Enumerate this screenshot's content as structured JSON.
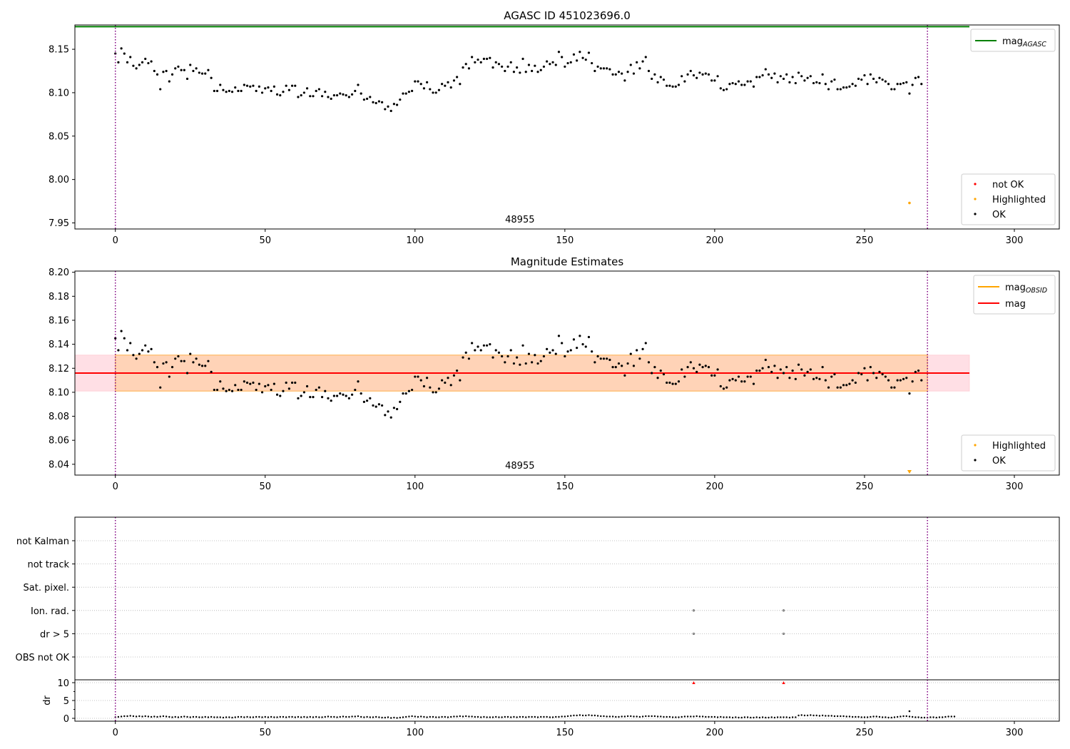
{
  "chart_data": [
    {
      "type": "scatter",
      "title": "AGASC ID 451023696.0",
      "xlim": [
        -13.5,
        315
      ],
      "ylim": [
        7.943,
        8.178
      ],
      "xticks": [
        0,
        50,
        100,
        150,
        200,
        250,
        300
      ],
      "yticks": [
        7.95,
        8.0,
        8.05,
        8.1,
        8.15
      ],
      "ytick_labels": [
        "7.95",
        "8.00",
        "8.05",
        "8.10",
        "8.15"
      ],
      "obsid_label": "48955",
      "obsid_label_x": 135,
      "obsid_bounds": [
        0,
        271
      ],
      "lines": [
        {
          "name": "mag_AGASC",
          "y": 8.176,
          "x_range": [
            -13.5,
            285
          ],
          "color": "#008000"
        }
      ],
      "legend_lines": [
        {
          "label": "mag",
          "sub": "AGASC",
          "color": "#008000"
        }
      ],
      "legend_points": [
        {
          "label": "not OK",
          "color": "#ff0000"
        },
        {
          "label": "Highlighted",
          "color": "#ffa500"
        },
        {
          "label": "OK",
          "color": "#000000"
        }
      ],
      "highlighted": [
        {
          "x": 265,
          "y": 7.973
        }
      ],
      "points_shared": "ok_series"
    },
    {
      "type": "scatter",
      "title": "Magnitude Estimates",
      "xlim": [
        -13.5,
        315
      ],
      "ylim": [
        8.031,
        8.201
      ],
      "xticks": [
        0,
        50,
        100,
        150,
        200,
        250,
        300
      ],
      "yticks": [
        8.04,
        8.06,
        8.08,
        8.1,
        8.12,
        8.14,
        8.16,
        8.18,
        8.2
      ],
      "ytick_labels": [
        "8.04",
        "8.06",
        "8.08",
        "8.10",
        "8.12",
        "8.14",
        "8.16",
        "8.18",
        "8.20"
      ],
      "obsid_label": "48955",
      "obsid_label_x": 135,
      "obsid_bounds": [
        0,
        271
      ],
      "lines": [
        {
          "name": "mag_OBSID",
          "y": 8.116,
          "x_range": [
            0,
            271
          ],
          "color": "#ffa500"
        },
        {
          "name": "mag",
          "y": 8.116,
          "x_range": [
            -13.5,
            285
          ],
          "color": "#ff0000"
        }
      ],
      "bands": [
        {
          "y0": 8.101,
          "y1": 8.131,
          "x_range": [
            -13.5,
            285
          ],
          "color": "#ffc0cb",
          "opacity": 0.5
        },
        {
          "y0": 8.101,
          "y1": 8.131,
          "x_range": [
            0,
            271
          ],
          "color": "#ffa500",
          "opacity": 0.2
        }
      ],
      "legend_lines": [
        {
          "label": "mag",
          "sub": "OBSID",
          "color": "#ffa500"
        },
        {
          "label": "mag",
          "sub": "",
          "color": "#ff0000"
        }
      ],
      "legend_points": [
        {
          "label": "Highlighted",
          "color": "#ffa500"
        },
        {
          "label": "OK",
          "color": "#000000"
        }
      ],
      "highlighted_offscale": [
        {
          "x": 265
        }
      ],
      "points_shared": "ok_series"
    },
    {
      "type": "scatter",
      "title": "",
      "xlim": [
        -13.5,
        315
      ],
      "xticks": [
        0,
        50,
        100,
        150,
        200,
        250,
        300
      ],
      "categories": [
        "not Kalman",
        "not track",
        "Sat. pixel.",
        "Ion. rad.",
        "dr > 5",
        "OBS not OK"
      ],
      "flag_points": [
        {
          "category": "Ion. rad.",
          "x": 193
        },
        {
          "category": "Ion. rad.",
          "x": 223
        },
        {
          "category": "dr > 5",
          "x": 193
        },
        {
          "category": "dr > 5",
          "x": 223
        }
      ],
      "obsid_bounds": [
        0,
        271
      ],
      "dr_panel": {
        "ylabel": "dr",
        "ylim": [
          -0.8,
          10.8
        ],
        "yticks": [
          0,
          5,
          10
        ],
        "ytick_labels": [
          "0",
          "5",
          "10"
        ],
        "offscale_marks": [
          {
            "x": 193
          },
          {
            "x": 223
          }
        ],
        "highlighted": [
          {
            "x": 265,
            "y": 2.0
          }
        ]
      }
    }
  ],
  "ok_series": {
    "x_start": 0,
    "x_step": 1,
    "mag": [
      8.145,
      8.135,
      8.151,
      8.145,
      8.135,
      8.141,
      8.131,
      8.128,
      8.132,
      8.135,
      8.139,
      8.134,
      8.136,
      8.125,
      8.121,
      8.104,
      8.124,
      8.125,
      8.113,
      8.121,
      8.128,
      8.13,
      8.126,
      8.126,
      8.116,
      8.132,
      8.125,
      8.128,
      8.123,
      8.122,
      8.122,
      8.126,
      8.117,
      8.102,
      8.102,
      8.109,
      8.103,
      8.101,
      8.102,
      8.101,
      8.106,
      8.102,
      8.102,
      8.109,
      8.108,
      8.107,
      8.108,
      8.102,
      8.107,
      8.1,
      8.105,
      8.106,
      8.102,
      8.107,
      8.098,
      8.097,
      8.101,
      8.108,
      8.103,
      8.108,
      8.108,
      8.095,
      8.097,
      8.1,
      8.105,
      8.096,
      8.096,
      8.102,
      8.104,
      8.096,
      8.101,
      8.095,
      8.093,
      8.097,
      8.097,
      8.099,
      8.098,
      8.097,
      8.095,
      8.098,
      8.102,
      8.109,
      8.099,
      8.092,
      8.093,
      8.095,
      8.089,
      8.088,
      8.09,
      8.089,
      8.081,
      8.084,
      8.079,
      8.087,
      8.086,
      8.092,
      8.099,
      8.099,
      8.101,
      8.102,
      8.113,
      8.113,
      8.11,
      8.105,
      8.112,
      8.104,
      8.1,
      8.1,
      8.103,
      8.11,
      8.108,
      8.112,
      8.106,
      8.114,
      8.118,
      8.11,
      8.129,
      8.133,
      8.128,
      8.141,
      8.135,
      8.138,
      8.135,
      8.139,
      8.139,
      8.14,
      8.129,
      8.135,
      8.133,
      8.13,
      8.125,
      8.13,
      8.135,
      8.124,
      8.129,
      8.123,
      8.139,
      8.124,
      8.132,
      8.125,
      8.131,
      8.124,
      8.126,
      8.13,
      8.136,
      8.133,
      8.135,
      8.132,
      8.147,
      8.141,
      8.13,
      8.134,
      8.135,
      8.144,
      8.137,
      8.147,
      8.14,
      8.138,
      8.146,
      8.134,
      8.125,
      8.13,
      8.128,
      8.128,
      8.128,
      8.127,
      8.121,
      8.121,
      8.124,
      8.122,
      8.114,
      8.124,
      8.132,
      8.122,
      8.135,
      8.128,
      8.136,
      8.141,
      8.125,
      8.116,
      8.121,
      8.112,
      8.118,
      8.115,
      8.108,
      8.108,
      8.107,
      8.107,
      8.109,
      8.119,
      8.113,
      8.121,
      8.125,
      8.12,
      8.117,
      8.123,
      8.121,
      8.122,
      8.121,
      8.114,
      8.114,
      8.119,
      8.105,
      8.103,
      8.104,
      8.11,
      8.111,
      8.11,
      8.113,
      8.109,
      8.109,
      8.113,
      8.113,
      8.107,
      8.118,
      8.118,
      8.12,
      8.127,
      8.121,
      8.117,
      8.122,
      8.112,
      8.119,
      8.116,
      8.121,
      8.112,
      8.118,
      8.111,
      8.123,
      8.119,
      8.114,
      8.117,
      8.119,
      8.111,
      8.112,
      8.111,
      8.121,
      8.11,
      8.104,
      8.113,
      8.115,
      8.104,
      8.104,
      8.106,
      8.106,
      8.107,
      8.11,
      8.108,
      8.116,
      8.115,
      8.12,
      8.11,
      8.121,
      8.116,
      8.112,
      8.117,
      8.115,
      8.113,
      8.11,
      8.104,
      8.104,
      8.11,
      8.11,
      8.111,
      8.112,
      8.099,
      8.109,
      8.117,
      8.118,
      8.11
    ],
    "dr": [
      0.3,
      0.4,
      0.5,
      0.6,
      0.6,
      0.7,
      0.6,
      0.5,
      0.6,
      0.5,
      0.6,
      0.5,
      0.4,
      0.5,
      0.4,
      0.5,
      0.6,
      0.5,
      0.4,
      0.3,
      0.4,
      0.3,
      0.4,
      0.5,
      0.4,
      0.3,
      0.4,
      0.4,
      0.3,
      0.3,
      0.4,
      0.3,
      0.4,
      0.3,
      0.3,
      0.3,
      0.2,
      0.3,
      0.3,
      0.2,
      0.3,
      0.4,
      0.4,
      0.3,
      0.4,
      0.3,
      0.3,
      0.4,
      0.4,
      0.3,
      0.4,
      0.3,
      0.4,
      0.3,
      0.3,
      0.4,
      0.4,
      0.3,
      0.4,
      0.4,
      0.3,
      0.4,
      0.3,
      0.4,
      0.3,
      0.4,
      0.3,
      0.4,
      0.3,
      0.3,
      0.4,
      0.5,
      0.4,
      0.4,
      0.3,
      0.4,
      0.5,
      0.4,
      0.4,
      0.5,
      0.5,
      0.6,
      0.4,
      0.3,
      0.4,
      0.3,
      0.3,
      0.4,
      0.3,
      0.2,
      0.2,
      0.3,
      0.1,
      0.2,
      0.1,
      0.2,
      0.3,
      0.4,
      0.5,
      0.6,
      0.5,
      0.4,
      0.5,
      0.4,
      0.3,
      0.4,
      0.4,
      0.3,
      0.3,
      0.4,
      0.4,
      0.3,
      0.4,
      0.5,
      0.5,
      0.6,
      0.5,
      0.6,
      0.5,
      0.5,
      0.4,
      0.4,
      0.3,
      0.4,
      0.3,
      0.3,
      0.3,
      0.4,
      0.3,
      0.3,
      0.4,
      0.4,
      0.3,
      0.4,
      0.3,
      0.4,
      0.4,
      0.3,
      0.4,
      0.4,
      0.4,
      0.3,
      0.4,
      0.4,
      0.4,
      0.3,
      0.3,
      0.4,
      0.4,
      0.5,
      0.5,
      0.6,
      0.7,
      0.8,
      0.8,
      0.9,
      0.8,
      0.8,
      0.9,
      0.8,
      0.8,
      0.7,
      0.6,
      0.6,
      0.5,
      0.5,
      0.5,
      0.4,
      0.4,
      0.5,
      0.5,
      0.6,
      0.6,
      0.5,
      0.5,
      0.4,
      0.5,
      0.6,
      0.6,
      0.6,
      0.6,
      0.5,
      0.5,
      0.4,
      0.4,
      0.4,
      0.3,
      0.3,
      0.3,
      0.4,
      0.5,
      0.5,
      0.5,
      0.5,
      0.6,
      0.5,
      0.5,
      0.4,
      0.4,
      0.4,
      0.4,
      0.3,
      0.4,
      0.3,
      0.3,
      0.3,
      0.2,
      0.3,
      0.2,
      0.2,
      0.3,
      0.3,
      0.2,
      0.2,
      0.3,
      0.2,
      0.3,
      0.2,
      0.2,
      0.3,
      0.2,
      0.3,
      0.3,
      0.3,
      0.3,
      0.2,
      0.3,
      0.3,
      0.8,
      0.9,
      0.8,
      0.8,
      0.9,
      0.8,
      0.8,
      0.7,
      0.8,
      0.7,
      0.7,
      0.7,
      0.6,
      0.6,
      0.6,
      0.6,
      0.5,
      0.5,
      0.4,
      0.4,
      0.4,
      0.3,
      0.3,
      0.3,
      0.4,
      0.5,
      0.5,
      0.4,
      0.3,
      0.3,
      0.2,
      0.2,
      0.3,
      0.4,
      0.5,
      0.6,
      0.6,
      0.5,
      0.4,
      0.3,
      0.3,
      0.2,
      0.2,
      0.2,
      0.3,
      0.3,
      0.2,
      0.3,
      0.3,
      0.4,
      0.5,
      0.5,
      0.5
    ]
  }
}
